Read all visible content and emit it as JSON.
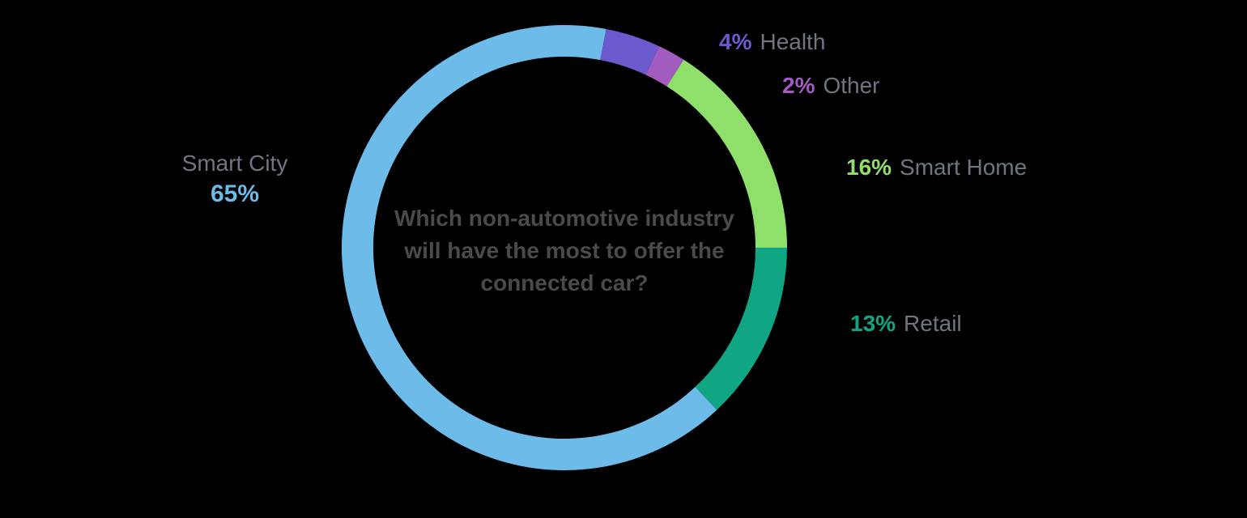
{
  "chart_data": {
    "type": "pie",
    "variant": "donut",
    "title": "Which non-automotive industry will have the most to offer the connected car?",
    "unit": "%",
    "slices": [
      {
        "label": "Health",
        "value": 4,
        "color": "#6a5acd"
      },
      {
        "label": "Other",
        "value": 2,
        "color": "#a25cc0"
      },
      {
        "label": "Smart Home",
        "value": 16,
        "color": "#8ee06a"
      },
      {
        "label": "Retail",
        "value": 13,
        "color": "#10a683"
      },
      {
        "label": "Smart City",
        "value": 65,
        "color": "#6cbbe8"
      }
    ],
    "start_angle_deg": 10.8,
    "legend_position": "around"
  },
  "labels": {
    "health": {
      "pct": "4%",
      "name": "Health"
    },
    "other": {
      "pct": "2%",
      "name": "Other"
    },
    "smart_home": {
      "pct": "16%",
      "name": "Smart Home"
    },
    "retail": {
      "pct": "13%",
      "name": "Retail"
    },
    "smart_city": {
      "pct": "65%",
      "name": "Smart City"
    }
  },
  "center_title": "Which non-automotive industry will have the most to offer the connected car?"
}
